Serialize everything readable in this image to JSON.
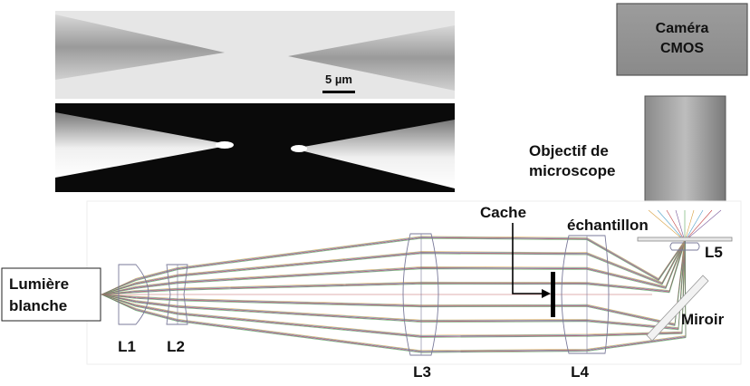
{
  "micrograph": {
    "scale_bar_label": "5 µm"
  },
  "camera": {
    "line1": "Caméra",
    "line2": "CMOS"
  },
  "objective": {
    "line1": "Objectif de",
    "line2": "microscope"
  },
  "source": {
    "line1": "Lumière",
    "line2": "blanche"
  },
  "labels": {
    "l1": "L1",
    "l2": "L2",
    "l3": "L3",
    "l4": "L4",
    "l5": "L5",
    "cache": "Cache",
    "sample": "échantillon",
    "mirror": "Miroir"
  },
  "colors": {
    "ray_colors": [
      "#d8a040",
      "#4fa0c8",
      "#c04040",
      "#7a5a9a",
      "#5aa85a"
    ]
  }
}
